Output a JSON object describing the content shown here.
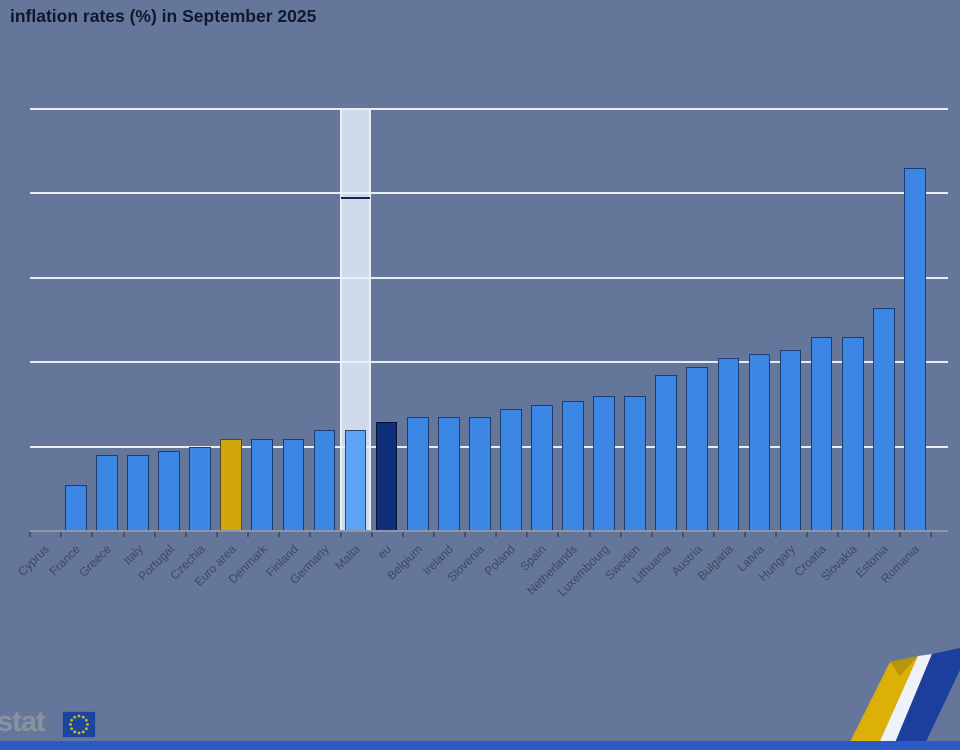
{
  "title": "inflation rates (%) in September 2025",
  "chart_data": {
    "type": "bar",
    "title": "inflation rates (%) in September 2025",
    "unit": "%",
    "ylim": [
      0,
      10.5
    ],
    "gridline_values": [
      2,
      4,
      6,
      8,
      10
    ],
    "grid_on": true,
    "legend": "none",
    "y_axis_labels_visible": false,
    "categories": [
      "Cyprus",
      "France",
      "Greece",
      "Italy",
      "Portugal",
      "Czechia",
      "Euro area",
      "Denmark",
      "Finland",
      "Germany",
      "Malta",
      "eu",
      "Belgium",
      "Ireland",
      "Slovenia",
      "Poland",
      "Spain",
      "Netherlands",
      "Luxembourg",
      "Sweden",
      "Lithuania",
      "Austria",
      "Bulgaria",
      "Latvia",
      "Hungary",
      "Croatia",
      "Slovakia",
      "Estonia",
      "Romania"
    ],
    "values": [
      0.0,
      1.1,
      1.8,
      1.8,
      1.9,
      2.0,
      2.2,
      2.2,
      2.2,
      2.4,
      2.4,
      2.6,
      2.7,
      2.7,
      2.7,
      2.9,
      3.0,
      3.1,
      3.2,
      3.2,
      3.7,
      3.9,
      4.1,
      4.2,
      4.3,
      4.6,
      4.6,
      5.3,
      8.6
    ],
    "bar_styles": [
      "member",
      "member",
      "member",
      "member",
      "member",
      "member",
      "euro-area",
      "member",
      "member",
      "member",
      "hovered",
      "eu",
      "member",
      "member",
      "member",
      "member",
      "member",
      "member",
      "member",
      "member",
      "member",
      "member",
      "member",
      "member",
      "member",
      "member",
      "member",
      "member",
      "member"
    ],
    "hovered_category": "Malta",
    "xlabel": "",
    "ylabel": ""
  },
  "colors": {
    "background": "#64779a",
    "member_bar": "#3b87e3",
    "euro_area_bar": "#d2a70c",
    "eu_bar": "#0e2d7a",
    "hovered_bar": "#5ba4f5",
    "hover_band": "#cfd9ec",
    "gridline": "#eef2f8",
    "title_text": "#10172e",
    "axis_label_text": "#3d4456",
    "bottom_strip": "#2c5ac4",
    "logo_yellow": "#ddb008",
    "logo_navy": "#1c3f9e"
  },
  "footer": {
    "logo_text": "stat"
  }
}
